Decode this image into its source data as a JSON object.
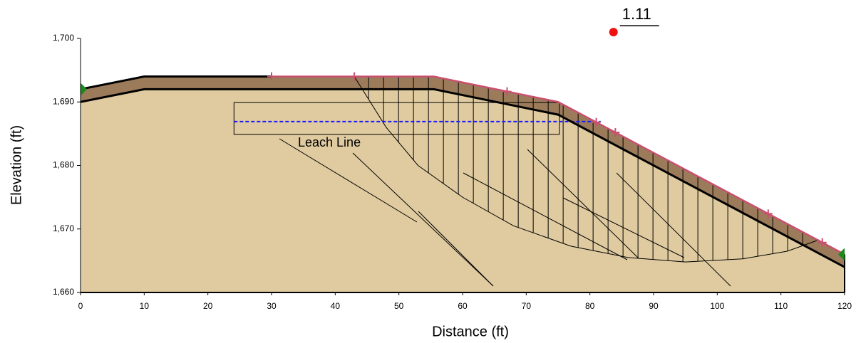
{
  "diagram": {
    "x_label": "Distance (ft)",
    "y_label": "Elevation (ft)",
    "xlim": [
      0,
      120
    ],
    "ylim": [
      1660,
      1700
    ],
    "xticks": [
      0,
      10,
      20,
      30,
      40,
      50,
      60,
      70,
      80,
      90,
      100,
      110,
      120
    ],
    "yticks": [
      {
        "value": 1660,
        "label": "1,660"
      },
      {
        "value": 1670,
        "label": "1,670"
      },
      {
        "value": 1680,
        "label": "1,680"
      },
      {
        "value": 1690,
        "label": "1,690"
      },
      {
        "value": 1700,
        "label": "1,700"
      }
    ],
    "surface": {
      "x": [
        0,
        10,
        55.5,
        75,
        120
      ],
      "y": [
        1692,
        1694,
        1694,
        1690,
        1666
      ]
    },
    "layer_bottom": {
      "x": [
        0,
        10,
        55.5,
        75,
        120
      ],
      "y": [
        1690,
        1692,
        1692,
        1688,
        1664
      ]
    },
    "slip_surface": {
      "x": [
        43,
        48,
        53,
        60,
        68,
        77,
        86,
        95,
        104,
        111,
        116
      ],
      "y": [
        1694,
        1686,
        1680,
        1675,
        1670.5,
        1667.3,
        1665.5,
        1664.8,
        1665.3,
        1666.5,
        1668.3
      ]
    },
    "leach_line": {
      "label": "Leach Line",
      "x": [
        24.1,
        75.2
      ],
      "y": [
        1684.9,
        1689.9
      ]
    },
    "water_line": {
      "x": [
        24.1,
        81.7
      ],
      "y": [
        1686.9,
        1686.9
      ]
    },
    "factor_of_safety": {
      "label": "1.11",
      "x": 83.7,
      "y": 1701
    }
  }
}
